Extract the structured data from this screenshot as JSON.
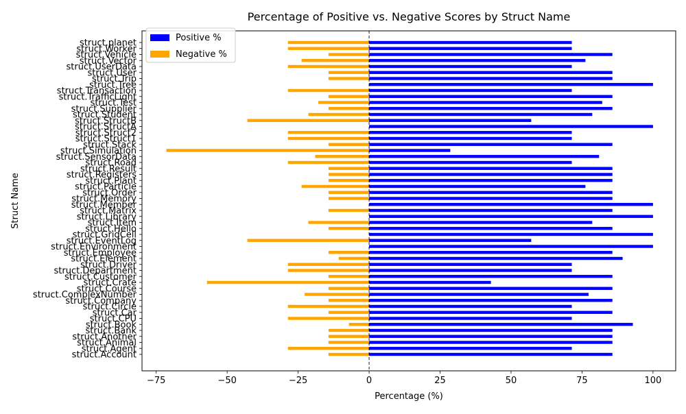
{
  "chart_data": {
    "type": "bar",
    "orientation": "horizontal",
    "title": "Percentage of Positive vs. Negative Scores by Struct Name",
    "xlabel": "Percentage (%)",
    "ylabel": "Struct Name",
    "xlim": [
      -80,
      108
    ],
    "xticks": [
      -75,
      -50,
      -25,
      0,
      25,
      50,
      75,
      100
    ],
    "xtick_labels": [
      "−75",
      "−50",
      "−25",
      "0",
      "25",
      "50",
      "75",
      "100"
    ],
    "grid": false,
    "legend_position": "upper-left",
    "zero_line": "dashed",
    "categories": [
      "struct.Account",
      "struct.Agent",
      "struct.Animal",
      "struct.Another",
      "struct.Bank",
      "struct.Book",
      "struct.CPU",
      "struct.Car",
      "struct.Circle",
      "struct.Company",
      "struct.ComplexNumber",
      "struct.Course",
      "struct.Crate",
      "struct.Customer",
      "struct.Department",
      "struct.Driver",
      "struct.Element",
      "struct.Employee",
      "struct.Environment",
      "struct.EventLog",
      "struct.GridCell",
      "struct.Hello",
      "struct.Item",
      "struct.Library",
      "struct.Matrix",
      "struct.Member",
      "struct.Memory",
      "struct.Order",
      "struct.Particle",
      "struct.Plant",
      "struct.Registers",
      "struct.Result",
      "struct.Road",
      "struct.SensorData",
      "struct.Simulation",
      "struct.Stack",
      "struct.Struct1",
      "struct.Struct2",
      "struct.StructA",
      "struct.StructB",
      "struct.Student",
      "struct.Supplier",
      "struct.Test",
      "struct.TrafficLight",
      "struct.Transaction",
      "struct.Tree",
      "struct.Trip",
      "struct.User",
      "struct.UserData",
      "struct.Vector",
      "struct.Vehicle",
      "struct.Worker",
      "struct.planet"
    ],
    "series": [
      {
        "name": "Positive %",
        "color": "#0000ff",
        "values": [
          85.7,
          71.4,
          85.7,
          85.7,
          85.7,
          92.9,
          71.4,
          85.7,
          71.4,
          85.7,
          77.3,
          85.7,
          42.9,
          85.7,
          71.4,
          71.4,
          89.3,
          85.7,
          100,
          57.1,
          100,
          85.7,
          78.6,
          100,
          85.7,
          100,
          85.7,
          85.7,
          76.2,
          85.7,
          85.7,
          85.7,
          71.4,
          81.0,
          28.6,
          85.7,
          71.4,
          71.4,
          100,
          57.1,
          78.6,
          85.7,
          82.1,
          85.7,
          71.4,
          100,
          85.7,
          85.7,
          71.4,
          76.2,
          85.7,
          71.4,
          71.4
        ]
      },
      {
        "name": "Negative %",
        "color": "#ffa500",
        "values": [
          -14.3,
          -28.6,
          -14.3,
          -14.3,
          -14.3,
          -7.1,
          -28.6,
          -14.3,
          -28.6,
          -14.3,
          -22.7,
          -14.3,
          -57.1,
          -14.3,
          -28.6,
          -28.6,
          -10.7,
          -14.3,
          0,
          -42.9,
          0,
          -14.3,
          -21.4,
          0,
          -14.3,
          0,
          -14.3,
          -14.3,
          -23.8,
          -14.3,
          -14.3,
          -14.3,
          -28.6,
          -19.0,
          -71.4,
          -14.3,
          -28.6,
          -28.6,
          0,
          -42.9,
          -21.4,
          -14.3,
          -17.9,
          -14.3,
          -28.6,
          0,
          -14.3,
          -14.3,
          -28.6,
          -23.8,
          -14.3,
          -28.6,
          -28.6
        ]
      }
    ]
  }
}
